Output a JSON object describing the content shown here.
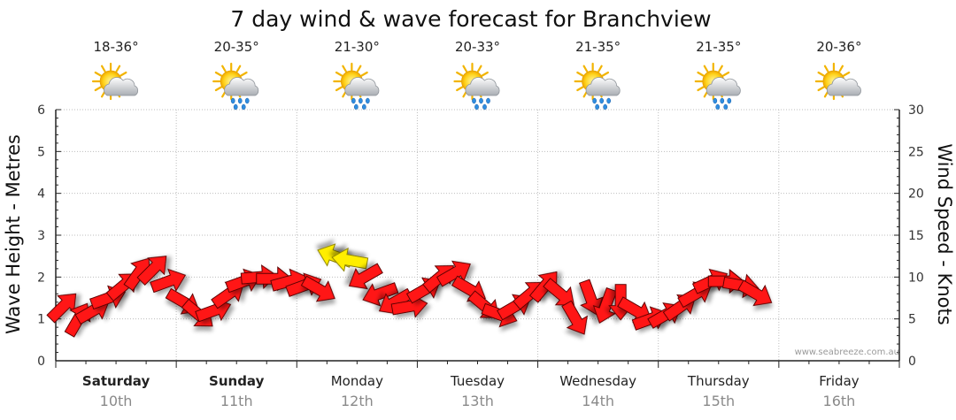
{
  "chart_data": {
    "type": "line",
    "title": "7 day wind & wave forecast for Branchview",
    "y_left": {
      "label": "Wave Height - Metres",
      "range": [
        0,
        6
      ],
      "ticks": [
        0,
        1,
        2,
        3,
        4,
        5,
        6
      ]
    },
    "y_right": {
      "label": "Wind Speed - Knots",
      "range": [
        0,
        30
      ],
      "ticks": [
        0,
        5,
        10,
        15,
        20,
        25,
        30
      ]
    },
    "grid": true,
    "credit": "www.seabreeze.com.au",
    "days": [
      {
        "name": "Saturday",
        "date": "10th",
        "bold": true,
        "temp": "18-36°",
        "weather_icon": "sun-cloud-icon"
      },
      {
        "name": "Sunday",
        "date": "11th",
        "bold": true,
        "temp": "20-35°",
        "weather_icon": "sun-cloud-rain-icon"
      },
      {
        "name": "Monday",
        "date": "12th",
        "bold": false,
        "temp": "21-30°",
        "weather_icon": "sun-cloud-rain-icon"
      },
      {
        "name": "Tuesday",
        "date": "13th",
        "bold": false,
        "temp": "20-33°",
        "weather_icon": "sun-cloud-rain-icon"
      },
      {
        "name": "Wednesday",
        "date": "14th",
        "bold": false,
        "temp": "21-35°",
        "weather_icon": "sun-cloud-rain-icon"
      },
      {
        "name": "Thursday",
        "date": "15th",
        "bold": false,
        "temp": "21-35°",
        "weather_icon": "sun-cloud-rain-icon"
      },
      {
        "name": "Friday",
        "date": "16th",
        "bold": false,
        "temp": "20-36°",
        "weather_icon": "sun-cloud-icon"
      }
    ],
    "series": [
      {
        "name": "Wind Speed",
        "unit": "knots",
        "x_unit": "hours from start",
        "points": [
          {
            "t": 0,
            "v": 6.5,
            "dir": 225
          },
          {
            "t": 3,
            "v": 5.0,
            "dir": 210
          },
          {
            "t": 6,
            "v": 6.0,
            "dir": 240
          },
          {
            "t": 9,
            "v": 7.5,
            "dir": 250
          },
          {
            "t": 12,
            "v": 9.0,
            "dir": 230
          },
          {
            "t": 15,
            "v": 10.5,
            "dir": 215
          },
          {
            "t": 18,
            "v": 11.0,
            "dir": 225
          },
          {
            "t": 21,
            "v": 9.5,
            "dir": 250
          },
          {
            "t": 24,
            "v": 7.0,
            "dir": 300
          },
          {
            "t": 27,
            "v": 5.5,
            "dir": 310
          },
          {
            "t": 30,
            "v": 6.0,
            "dir": 250
          },
          {
            "t": 33,
            "v": 8.0,
            "dir": 235
          },
          {
            "t": 36,
            "v": 9.5,
            "dir": 250
          },
          {
            "t": 39,
            "v": 10.0,
            "dir": 265
          },
          {
            "t": 42,
            "v": 9.8,
            "dir": 270
          },
          {
            "t": 45,
            "v": 9.5,
            "dir": 255
          },
          {
            "t": 48,
            "v": 9.0,
            "dir": 250
          },
          {
            "t": 51,
            "v": 8.5,
            "dir": 300
          },
          {
            "t": 54,
            "v": 12.5,
            "dir": 110
          },
          {
            "t": 57,
            "v": 12.0,
            "dir": 100
          },
          {
            "t": 60,
            "v": 10.0,
            "dir": 60
          },
          {
            "t": 63,
            "v": 8.0,
            "dir": 70
          },
          {
            "t": 66,
            "v": 7.0,
            "dir": 60
          },
          {
            "t": 69,
            "v": 6.5,
            "dir": 260
          },
          {
            "t": 72,
            "v": 8.5,
            "dir": 240
          },
          {
            "t": 75,
            "v": 10.0,
            "dir": 230
          },
          {
            "t": 78,
            "v": 10.5,
            "dir": 240
          },
          {
            "t": 81,
            "v": 8.5,
            "dir": 300
          },
          {
            "t": 84,
            "v": 6.5,
            "dir": 310
          },
          {
            "t": 87,
            "v": 5.5,
            "dir": 290
          },
          {
            "t": 90,
            "v": 6.5,
            "dir": 240
          },
          {
            "t": 93,
            "v": 8.0,
            "dir": 230
          },
          {
            "t": 96,
            "v": 9.0,
            "dir": 220
          },
          {
            "t": 99,
            "v": 8.0,
            "dir": 310
          },
          {
            "t": 102,
            "v": 5.0,
            "dir": 330
          },
          {
            "t": 105,
            "v": 7.5,
            "dir": 340
          },
          {
            "t": 108,
            "v": 6.5,
            "dir": 20
          },
          {
            "t": 111,
            "v": 7.0,
            "dir": 0
          },
          {
            "t": 114,
            "v": 6.0,
            "dir": 300
          },
          {
            "t": 117,
            "v": 5.0,
            "dir": 250
          },
          {
            "t": 120,
            "v": 5.5,
            "dir": 240
          },
          {
            "t": 123,
            "v": 6.5,
            "dir": 235
          },
          {
            "t": 126,
            "v": 8.0,
            "dir": 240
          },
          {
            "t": 129,
            "v": 9.5,
            "dir": 245
          },
          {
            "t": 132,
            "v": 9.5,
            "dir": 270
          },
          {
            "t": 135,
            "v": 9.0,
            "dir": 280
          },
          {
            "t": 138,
            "v": 8.0,
            "dir": 300
          }
        ]
      },
      {
        "name": "Wave Height",
        "unit": "metres",
        "note": "wave height not separately drawn"
      }
    ]
  }
}
